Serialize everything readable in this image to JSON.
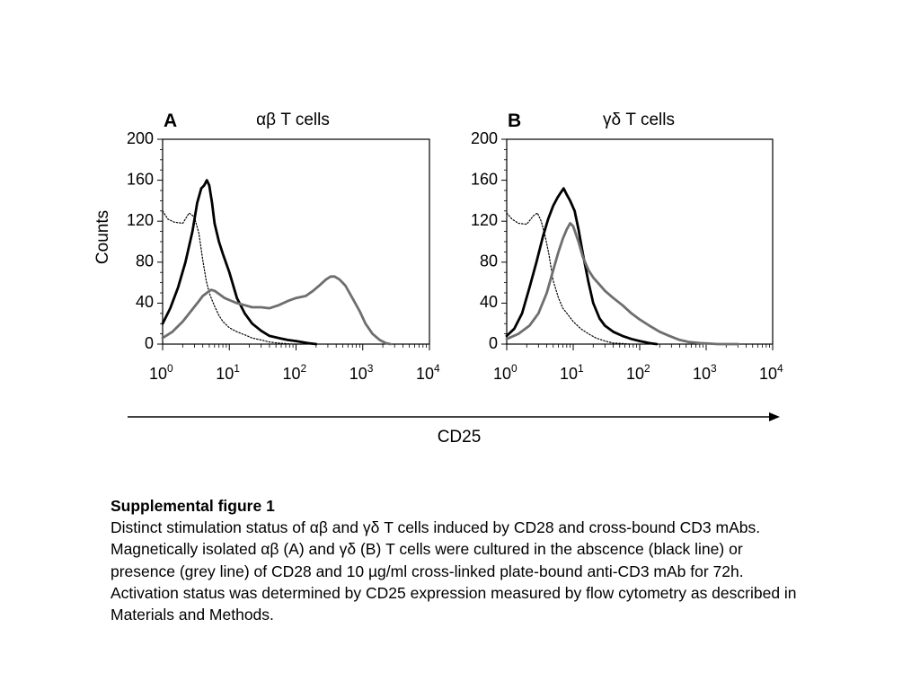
{
  "figure": {
    "shared_xlabel": "CD25",
    "ylabel": "Counts"
  },
  "chart_data": [
    {
      "type": "line",
      "panel_label": "A",
      "title": "αβ T cells",
      "ylabel": "Counts",
      "xscale": "log",
      "xlim": [
        1,
        10000
      ],
      "ylim": [
        0,
        200
      ],
      "yticks": [
        0,
        40,
        80,
        120,
        160,
        200
      ],
      "xtick_bases": [
        "10",
        "10",
        "10",
        "10",
        "10"
      ],
      "xtick_exps": [
        "0",
        "1",
        "2",
        "3",
        "4"
      ],
      "grid": false,
      "series": [
        {
          "style": "dotted",
          "color": "#000000",
          "x": [
            1,
            1.2,
            1.5,
            2,
            2.5,
            3,
            3.5,
            4,
            4.5,
            5,
            5.5,
            6,
            7,
            8,
            10,
            13,
            17,
            22,
            30,
            40,
            55,
            70,
            90,
            120
          ],
          "y": [
            130,
            122,
            119,
            118,
            128,
            124,
            108,
            82,
            62,
            50,
            43,
            37,
            28,
            22,
            16,
            12,
            9,
            6,
            4,
            2,
            1,
            0.5,
            0,
            0
          ]
        },
        {
          "style": "solid",
          "color": "#000000",
          "x": [
            1,
            1.3,
            1.7,
            2.2,
            2.8,
            3.3,
            3.8,
            4.2,
            4.6,
            5,
            5.5,
            6,
            7,
            8,
            10,
            13,
            17,
            22,
            30,
            40,
            55,
            75,
            100,
            150,
            200
          ],
          "y": [
            20,
            35,
            55,
            80,
            110,
            138,
            152,
            155,
            160,
            155,
            138,
            118,
            100,
            88,
            70,
            45,
            30,
            20,
            13,
            8,
            6,
            4,
            3,
            1,
            0
          ]
        },
        {
          "style": "solid",
          "color": "#6e6e6e",
          "x": [
            1,
            1.4,
            2,
            2.8,
            3.5,
            4,
            4.6,
            5.3,
            6,
            7,
            8.5,
            10,
            13,
            17,
            22,
            30,
            40,
            55,
            75,
            100,
            140,
            180,
            230,
            280,
            330,
            380,
            450,
            550,
            700,
            900,
            1100,
            1400,
            1800,
            2200,
            2600
          ],
          "y": [
            6,
            12,
            22,
            34,
            42,
            47,
            50,
            53,
            52,
            49,
            45,
            43,
            40,
            38,
            36,
            36,
            35,
            38,
            42,
            45,
            47,
            52,
            58,
            63,
            66,
            66,
            63,
            57,
            45,
            32,
            20,
            10,
            4,
            1,
            0
          ]
        }
      ]
    },
    {
      "type": "line",
      "panel_label": "B",
      "title": "γδ T cells",
      "ylabel": "",
      "xscale": "log",
      "xlim": [
        1,
        10000
      ],
      "ylim": [
        0,
        200
      ],
      "yticks": [
        0,
        40,
        80,
        120,
        160,
        200
      ],
      "xtick_bases": [
        "10",
        "10",
        "10",
        "10",
        "10"
      ],
      "xtick_exps": [
        "0",
        "1",
        "2",
        "3",
        "4"
      ],
      "grid": false,
      "series": [
        {
          "style": "dotted",
          "color": "#000000",
          "x": [
            1,
            1.2,
            1.5,
            2,
            2.5,
            2.9,
            3.3,
            3.8,
            4.3,
            5,
            6,
            7,
            8.5,
            10,
            13,
            17,
            22,
            30,
            40,
            55,
            70
          ],
          "y": [
            128,
            122,
            118,
            117,
            125,
            128,
            120,
            105,
            88,
            62,
            45,
            35,
            28,
            22,
            15,
            10,
            6,
            3,
            1,
            0.5,
            0
          ]
        },
        {
          "style": "solid",
          "color": "#000000",
          "x": [
            1,
            1.3,
            1.7,
            2.2,
            2.8,
            3.5,
            4.2,
            5,
            5.8,
            6.5,
            7.2,
            8,
            9,
            10.5,
            12,
            14,
            17,
            20,
            25,
            30,
            40,
            55,
            75,
            100,
            140,
            180
          ],
          "y": [
            8,
            15,
            30,
            55,
            80,
            105,
            122,
            135,
            143,
            148,
            152,
            146,
            140,
            130,
            112,
            88,
            60,
            40,
            25,
            18,
            12,
            8,
            5,
            3,
            1,
            0
          ]
        },
        {
          "style": "solid",
          "color": "#6e6e6e",
          "x": [
            1,
            1.5,
            2.2,
            3,
            4,
            5,
            6,
            7,
            8,
            9,
            10,
            12,
            14,
            17,
            20,
            25,
            30,
            40,
            55,
            75,
            100,
            140,
            200,
            280,
            400,
            550,
            800,
            1100,
            1500,
            2000,
            3000
          ],
          "y": [
            5,
            10,
            18,
            30,
            50,
            72,
            90,
            103,
            112,
            118,
            115,
            100,
            85,
            72,
            65,
            58,
            52,
            45,
            38,
            30,
            24,
            18,
            12,
            8,
            4,
            2,
            1,
            0.5,
            0,
            0,
            0
          ]
        }
      ]
    }
  ],
  "caption": {
    "title": "Supplemental figure 1",
    "text": "Distinct stimulation status of αβ and γδ T cells induced by CD28 and cross-bound CD3 mAbs. Magnetically isolated αβ (A) and γδ (B) T cells were cultured in the abscence (black line) or presence (grey line) of CD28 and 10 µg/ml cross-linked plate-bound anti-CD3 mAb for 72h. Activation status was determined by CD25 expression measured by flow cytometry as described in Materials and Methods."
  }
}
